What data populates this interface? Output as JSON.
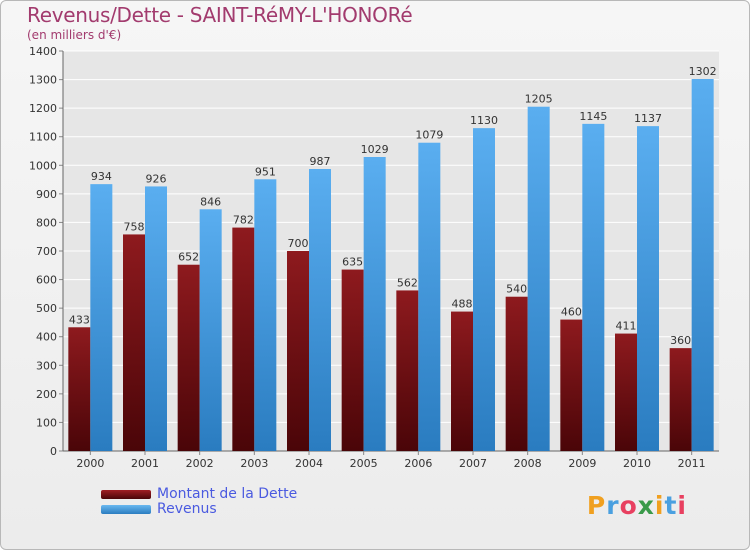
{
  "header": {
    "title": "Revenus/Dette - SAINT-RéMY-L'HONORé",
    "subtitle": "(en milliers d'€)"
  },
  "brand": {
    "letters": [
      "P",
      "r",
      "o",
      "x",
      "i",
      "t",
      "i"
    ],
    "colors": [
      "#f0a020",
      "#4aa0e0",
      "#e84060",
      "#3a9a4a",
      "#f0a020",
      "#4aa0e0",
      "#e84060"
    ]
  },
  "colors": {
    "dette": "#7a1418",
    "revenus": "#3a92d8",
    "text_accent": "#a23b6e",
    "legend_text": "#4a5ae0"
  },
  "chart_data": {
    "type": "bar",
    "title": "Revenus/Dette - SAINT-RéMY-L'HONORé",
    "subtitle": "(en milliers d'€)",
    "categories": [
      "2000",
      "2001",
      "2002",
      "2003",
      "2004",
      "2005",
      "2006",
      "2007",
      "2008",
      "2009",
      "2010",
      "2011"
    ],
    "series": [
      {
        "name": "Montant de la Dette",
        "values": [
          433,
          758,
          652,
          782,
          700,
          635,
          562,
          488,
          540,
          460,
          411,
          360
        ]
      },
      {
        "name": "Revenus",
        "values": [
          934,
          926,
          846,
          951,
          987,
          1029,
          1079,
          1130,
          1205,
          1145,
          1137,
          1302
        ]
      }
    ],
    "ylim": [
      0,
      1400
    ],
    "yticks": [
      0,
      100,
      200,
      300,
      400,
      500,
      600,
      700,
      800,
      900,
      1000,
      1100,
      1200,
      1300,
      1400
    ],
    "grid": true,
    "legend_position": "bottom-left"
  }
}
